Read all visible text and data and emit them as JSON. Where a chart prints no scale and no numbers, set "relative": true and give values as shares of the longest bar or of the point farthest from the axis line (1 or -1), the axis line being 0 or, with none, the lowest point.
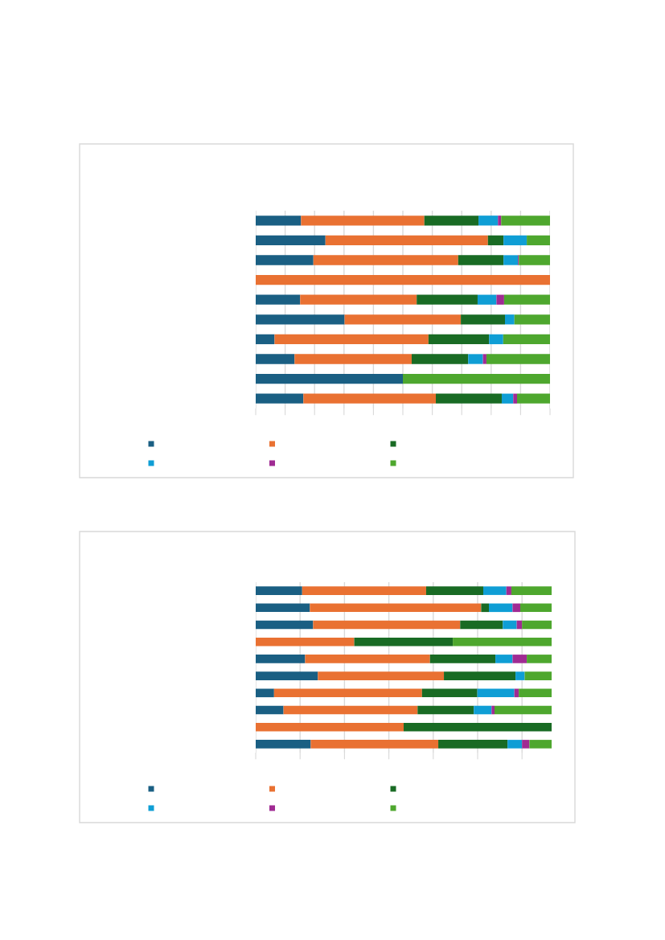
{
  "chart_data": [
    {
      "type": "bar",
      "orientation": "horizontal",
      "stacked": true,
      "relative": true,
      "grid": "x",
      "tick_labels": false,
      "categories": [
        null,
        null,
        null,
        null,
        null,
        null,
        null,
        null,
        null,
        null
      ],
      "series": [
        {
          "color": "#1a5f83",
          "values": [
            0.154,
            0.237,
            0.196,
            0,
            0.151,
            0.302,
            0.064,
            0.132,
            0.5,
            0.162
          ]
        },
        {
          "color": "#e97132",
          "values": [
            0.419,
            0.552,
            0.492,
            1.0,
            0.396,
            0.395,
            0.523,
            0.398,
            0,
            0.45
          ]
        },
        {
          "color": "#196b24",
          "values": [
            0.184,
            0.053,
            0.154,
            0,
            0.207,
            0.15,
            0.206,
            0.192,
            0,
            0.224
          ]
        },
        {
          "color": "#0f9ed5",
          "values": [
            0.066,
            0.079,
            0.049,
            0,
            0.064,
            0.032,
            0.048,
            0.05,
            0,
            0.039
          ]
        },
        {
          "color": "#a02b93",
          "values": [
            0.011,
            0,
            0.003,
            0,
            0.026,
            0,
            0,
            0.012,
            0,
            0.013
          ]
        },
        {
          "color": "#4ea72e",
          "values": [
            0.166,
            0.079,
            0.106,
            0,
            0.156,
            0.121,
            0.159,
            0.216,
            0.5,
            0.112
          ]
        }
      ]
    },
    {
      "type": "bar",
      "orientation": "horizontal",
      "stacked": true,
      "relative": true,
      "grid": "x",
      "tick_labels": false,
      "categories": [
        null,
        null,
        null,
        null,
        null,
        null,
        null,
        null,
        null,
        null
      ],
      "series": [
        {
          "color": "#1a5f83",
          "values": [
            0.157,
            0.183,
            0.194,
            0,
            0.167,
            0.21,
            0.062,
            0.094,
            0,
            0.186
          ]
        },
        {
          "color": "#e97132",
          "values": [
            0.419,
            0.579,
            0.497,
            0.333,
            0.422,
            0.426,
            0.5,
            0.453,
            0.5,
            0.431
          ]
        },
        {
          "color": "#196b24",
          "values": [
            0.193,
            0.026,
            0.144,
            0.333,
            0.221,
            0.242,
            0.187,
            0.19,
            0.5,
            0.234
          ]
        },
        {
          "color": "#0f9ed5",
          "values": [
            0.078,
            0.08,
            0.047,
            0,
            0.058,
            0.031,
            0.125,
            0.06,
            0,
            0.049
          ]
        },
        {
          "color": "#a02b93",
          "values": [
            0.017,
            0.026,
            0.018,
            0,
            0.048,
            0,
            0.015,
            0.01,
            0,
            0.025
          ]
        },
        {
          "color": "#4ea72e",
          "values": [
            0.136,
            0.106,
            0.1,
            0.334,
            0.084,
            0.091,
            0.111,
            0.193,
            0,
            0.075
          ]
        }
      ]
    }
  ]
}
